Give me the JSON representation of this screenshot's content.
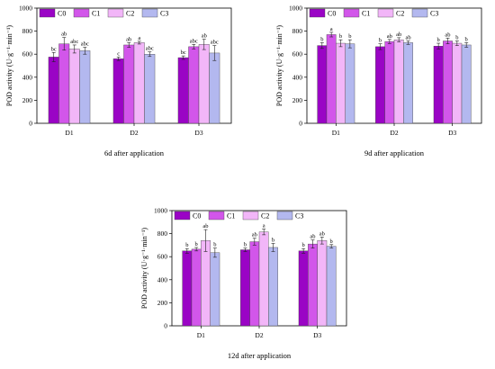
{
  "chart_data": [
    {
      "type": "bar",
      "caption": "6d after application",
      "ylabel": "POD activity (U·g⁻¹·min⁻¹)",
      "ylim": [
        0,
        1000
      ],
      "yticks": [
        0,
        200,
        400,
        600,
        800,
        1000
      ],
      "categories": [
        "D1",
        "D2",
        "D3"
      ],
      "legend_position": "top-left",
      "series": [
        {
          "name": "C0",
          "values": [
            575,
            560,
            570
          ],
          "errors": [
            40,
            15,
            15
          ],
          "letters": [
            "bc",
            "c",
            "bc"
          ]
        },
        {
          "name": "C1",
          "values": [
            690,
            680,
            665
          ],
          "errors": [
            55,
            20,
            20
          ],
          "letters": [
            "ab",
            "ab",
            "abc"
          ]
        },
        {
          "name": "C2",
          "values": [
            645,
            700,
            685
          ],
          "errors": [
            35,
            12,
            45
          ],
          "letters": [
            "abc",
            "a",
            "ab"
          ]
        },
        {
          "name": "C3",
          "values": [
            630,
            600,
            610
          ],
          "errors": [
            30,
            20,
            65
          ],
          "letters": [
            "abc",
            "abc",
            "abc"
          ]
        }
      ]
    },
    {
      "type": "bar",
      "caption": "9d after application",
      "ylabel": "POD activity (U·g⁻¹·min⁻¹)",
      "ylim": [
        0,
        1000
      ],
      "yticks": [
        0,
        200,
        400,
        600,
        800,
        1000
      ],
      "categories": [
        "D1",
        "D2",
        "D3"
      ],
      "legend_position": "top-left",
      "series": [
        {
          "name": "C0",
          "values": [
            675,
            665,
            670
          ],
          "errors": [
            25,
            25,
            25
          ],
          "letters": [
            "b",
            "b",
            "b"
          ]
        },
        {
          "name": "C1",
          "values": [
            770,
            710,
            715
          ],
          "errors": [
            20,
            18,
            25
          ],
          "letters": [
            "a",
            "ab",
            "ab"
          ]
        },
        {
          "name": "C2",
          "values": [
            695,
            725,
            695
          ],
          "errors": [
            30,
            18,
            20
          ],
          "letters": [
            "b",
            "ab",
            "b"
          ]
        },
        {
          "name": "C3",
          "values": [
            690,
            700,
            680
          ],
          "errors": [
            35,
            15,
            20
          ],
          "letters": [
            "b",
            "ab",
            "b"
          ]
        }
      ]
    },
    {
      "type": "bar",
      "caption": "12d after application",
      "ylabel": "POD activity (U·g⁻¹·min⁻¹)",
      "ylim": [
        0,
        1000
      ],
      "yticks": [
        0,
        200,
        400,
        600,
        800,
        1000
      ],
      "categories": [
        "D1",
        "D2",
        "D3"
      ],
      "legend_position": "top-left",
      "series": [
        {
          "name": "C0",
          "values": [
            650,
            660,
            650
          ],
          "errors": [
            20,
            15,
            20
          ],
          "letters": [
            "b",
            "b",
            "b"
          ]
        },
        {
          "name": "C1",
          "values": [
            665,
            730,
            710
          ],
          "errors": [
            15,
            30,
            35
          ],
          "letters": [
            "b",
            "ab",
            "ab"
          ]
        },
        {
          "name": "C2",
          "values": [
            740,
            815,
            740
          ],
          "errors": [
            95,
            25,
            30
          ],
          "letters": [
            "ab",
            "a",
            "ab"
          ]
        },
        {
          "name": "C3",
          "values": [
            635,
            680,
            690
          ],
          "errors": [
            40,
            35,
            15
          ],
          "letters": [
            "b",
            "b",
            "b"
          ]
        }
      ]
    }
  ],
  "colors": {
    "C0": "#9a04c5",
    "C1": "#d256ea",
    "C2": "#f2b6f8",
    "C3": "#b3b8ef",
    "stroke": "#444444"
  }
}
